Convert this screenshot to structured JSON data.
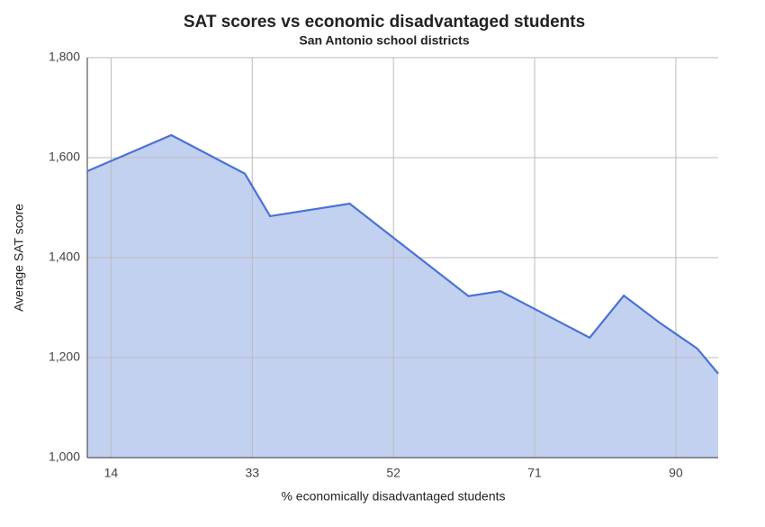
{
  "chart_data": {
    "type": "area",
    "title": "SAT scores vs economic disadvantaged students",
    "subtitle": "San Antonio school districts",
    "x_label": "% economically disadvantaged students",
    "y_label": "Average SAT score",
    "x": [
      10.8,
      22.1,
      32.0,
      35.4,
      46.1,
      62.1,
      66.4,
      78.4,
      83.0,
      87.8,
      92.9,
      95.7
    ],
    "values": [
      1573,
      1645,
      1568,
      1483,
      1508,
      1323,
      1333,
      1240,
      1324,
      1270,
      1218,
      1168
    ],
    "color": "#4a72d6",
    "fill": "#c3d1f0",
    "xlim": [
      10.8,
      95.7
    ],
    "xticks": [
      14,
      33,
      52,
      71,
      90
    ],
    "ylim": [
      1000,
      1800
    ],
    "yticks": [
      {
        "value": 1000,
        "label": "1,000"
      },
      {
        "value": 1200,
        "label": "1,200"
      },
      {
        "value": 1400,
        "label": "1,400"
      },
      {
        "value": 1600,
        "label": "1,600"
      },
      {
        "value": 1800,
        "label": "1,800"
      }
    ],
    "grid": true
  }
}
